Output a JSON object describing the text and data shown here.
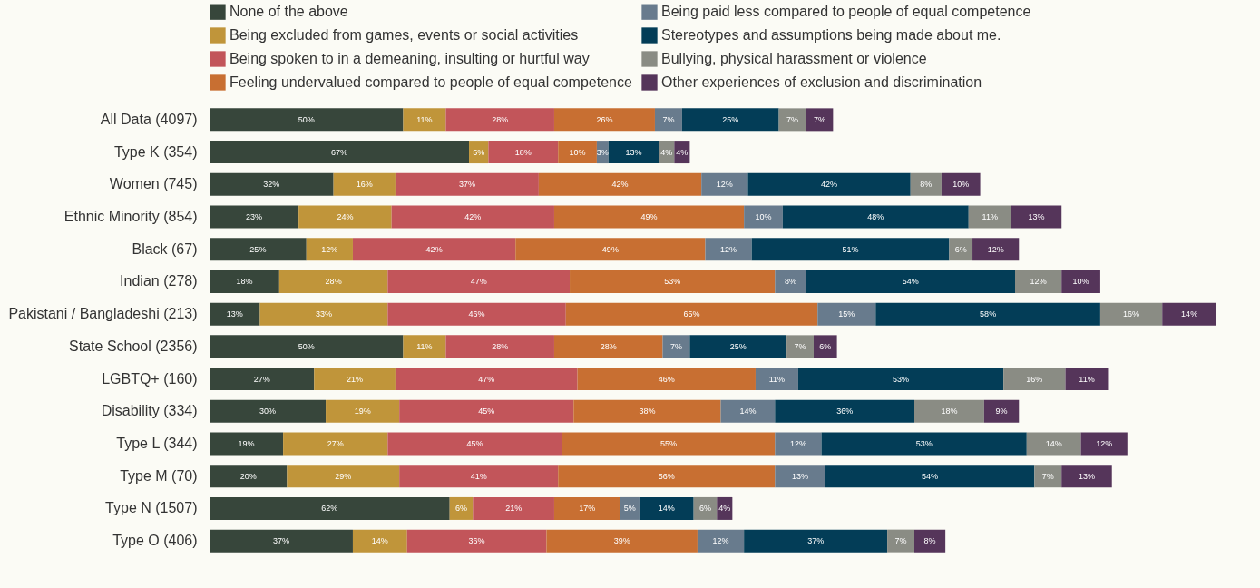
{
  "chart_data": {
    "type": "bar",
    "orientation": "horizontal",
    "stacked": true,
    "tick_labels": "y",
    "legend": "top",
    "categories": [
      "All Data (4097)",
      "Type K (354)",
      "Women (745)",
      "Ethnic Minority (854)",
      "Black (67)",
      "Indian (278)",
      "Pakistani / Bangladeshi (213)",
      "State School (2356)",
      "LGBTQ+ (160)",
      "Disability (334)",
      "Type L (344)",
      "Type M (70)",
      "Type N (1507)",
      "Type O (406)"
    ],
    "series": [
      {
        "name": "None of the above",
        "color": "#37463b",
        "values": [
          50,
          67,
          32,
          23,
          25,
          18,
          13,
          50,
          27,
          30,
          19,
          20,
          62,
          37
        ],
        "value_labels": [
          "50%",
          "67%",
          "32%",
          "23%",
          "25%",
          "18%",
          "13%",
          "50%",
          "27%",
          "30%",
          "19%",
          "20%",
          "62%",
          "37%"
        ]
      },
      {
        "name": "Being excluded from games, events or social activities",
        "color": "#c0953a",
        "values": [
          11,
          5,
          16,
          24,
          12,
          28,
          33,
          11,
          21,
          19,
          27,
          29,
          6,
          14
        ],
        "value_labels": [
          "11%",
          "5%",
          "16%",
          "24%",
          "12%",
          "28%",
          "33%",
          "11%",
          "21%",
          "19%",
          "27%",
          "29%",
          "6%",
          "14%"
        ]
      },
      {
        "name": "Being spoken to in a demeaning, insulting or hurtful way",
        "color": "#c2555a",
        "values": [
          28,
          18,
          37,
          42,
          42,
          47,
          46,
          28,
          47,
          45,
          45,
          41,
          21,
          36
        ],
        "value_labels": [
          "28%",
          "18%",
          "37%",
          "42%",
          "42%",
          "47%",
          "46%",
          "28%",
          "47%",
          "45%",
          "45%",
          "41%",
          "21%",
          "36%"
        ]
      },
      {
        "name": "Feeling undervalued compared to people of equal competence",
        "color": "#c86f32",
        "values": [
          26,
          10,
          42,
          49,
          49,
          53,
          65,
          28,
          46,
          38,
          55,
          56,
          17,
          39
        ],
        "value_labels": [
          "26%",
          "10%",
          "42%",
          "49%",
          "49%",
          "53%",
          "65%",
          "28%",
          "46%",
          "38%",
          "55%",
          "56%",
          "17%",
          "39%"
        ]
      },
      {
        "name": "Being paid less compared to people of equal competence",
        "color": "#687b8d",
        "values": [
          7,
          3,
          12,
          10,
          12,
          8,
          15,
          7,
          11,
          14,
          12,
          13,
          5,
          12
        ],
        "value_labels": [
          "7%",
          "3%",
          "12%",
          "10%",
          "12%",
          "8%",
          "15%",
          "7%",
          "11%",
          "14%",
          "12%",
          "13%",
          "5%",
          "12%"
        ]
      },
      {
        "name": "Stereotypes and assumptions being made about me.",
        "color": "#033d57",
        "values": [
          25,
          13,
          42,
          48,
          51,
          54,
          58,
          25,
          53,
          36,
          53,
          54,
          14,
          37
        ],
        "value_labels": [
          "25%",
          "13%",
          "42%",
          "48%",
          "51%",
          "54%",
          "58%",
          "25%",
          "53%",
          "36%",
          "53%",
          "54%",
          "14%",
          "37%"
        ]
      },
      {
        "name": "Bullying, physical harassment or violence",
        "color": "#8a8c84",
        "values": [
          7,
          4,
          8,
          11,
          6,
          12,
          16,
          7,
          16,
          18,
          14,
          7,
          6,
          7
        ],
        "value_labels": [
          "7%",
          "4%",
          "8%",
          "11%",
          "6%",
          "12%",
          "16%",
          "7%",
          "16%",
          "18%",
          "14%",
          "7%",
          "6%",
          "7%"
        ]
      },
      {
        "name": "Other experiences of exclusion and discrimination",
        "color": "#55355a",
        "values": [
          7,
          4,
          10,
          13,
          12,
          10,
          14,
          6,
          11,
          9,
          12,
          13,
          4,
          8
        ],
        "value_labels": [
          "7%",
          "4%",
          "10%",
          "13%",
          "12%",
          "10%",
          "14%",
          "6%",
          "11%",
          "9%",
          "12%",
          "13%",
          "4%",
          "8%"
        ]
      }
    ]
  }
}
